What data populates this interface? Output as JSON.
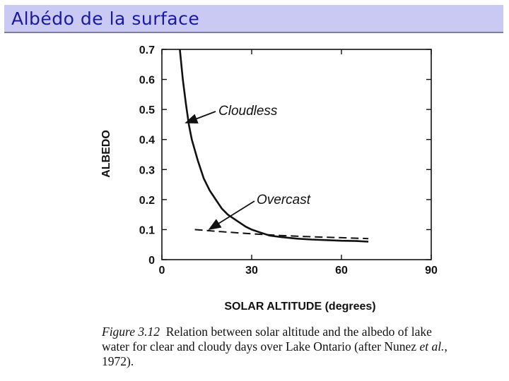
{
  "slide": {
    "title": "Albédo de la surface"
  },
  "caption": {
    "figure_label": "Figure 3.12",
    "text_before_etal": "Relation between solar altitude and the albedo of lake water for clear and cloudy days over Lake Ontario (after Nunez ",
    "etal": "et al.",
    "text_after_etal": ", 1972)."
  },
  "chart_data": {
    "type": "line",
    "title": "",
    "xlabel": "SOLAR ALTITUDE (degrees)",
    "ylabel": "ALBEDO",
    "xlim": [
      0,
      90
    ],
    "ylim": [
      0,
      0.7
    ],
    "xticks": [
      0,
      30,
      60,
      90
    ],
    "yticks": [
      0,
      0.1,
      0.2,
      0.3,
      0.4,
      0.5,
      0.6,
      0.7
    ],
    "ytick_labels": [
      "0",
      "0.1",
      "0.2",
      "0.3",
      "0.4",
      "0.5",
      "0.6",
      "0.7"
    ],
    "grid": false,
    "series": [
      {
        "name": "Cloudless",
        "style": "solid",
        "x": [
          6,
          7,
          8,
          9,
          10,
          12,
          14,
          16,
          18,
          20,
          22,
          25,
          28,
          30,
          33,
          36,
          40,
          45,
          50,
          55,
          60,
          65,
          69
        ],
        "y": [
          0.7,
          0.6,
          0.52,
          0.45,
          0.4,
          0.33,
          0.27,
          0.23,
          0.2,
          0.17,
          0.15,
          0.13,
          0.11,
          0.1,
          0.09,
          0.08,
          0.075,
          0.07,
          0.067,
          0.065,
          0.063,
          0.062,
          0.06
        ]
      },
      {
        "name": "Overcast",
        "style": "dashed",
        "x": [
          11,
          20,
          30,
          40,
          50,
          60,
          69
        ],
        "y": [
          0.1,
          0.093,
          0.086,
          0.08,
          0.076,
          0.073,
          0.07
        ]
      }
    ],
    "annotations": [
      {
        "text": "Cloudless",
        "series": "Cloudless"
      },
      {
        "text": "Overcast",
        "series": "Overcast"
      }
    ]
  }
}
